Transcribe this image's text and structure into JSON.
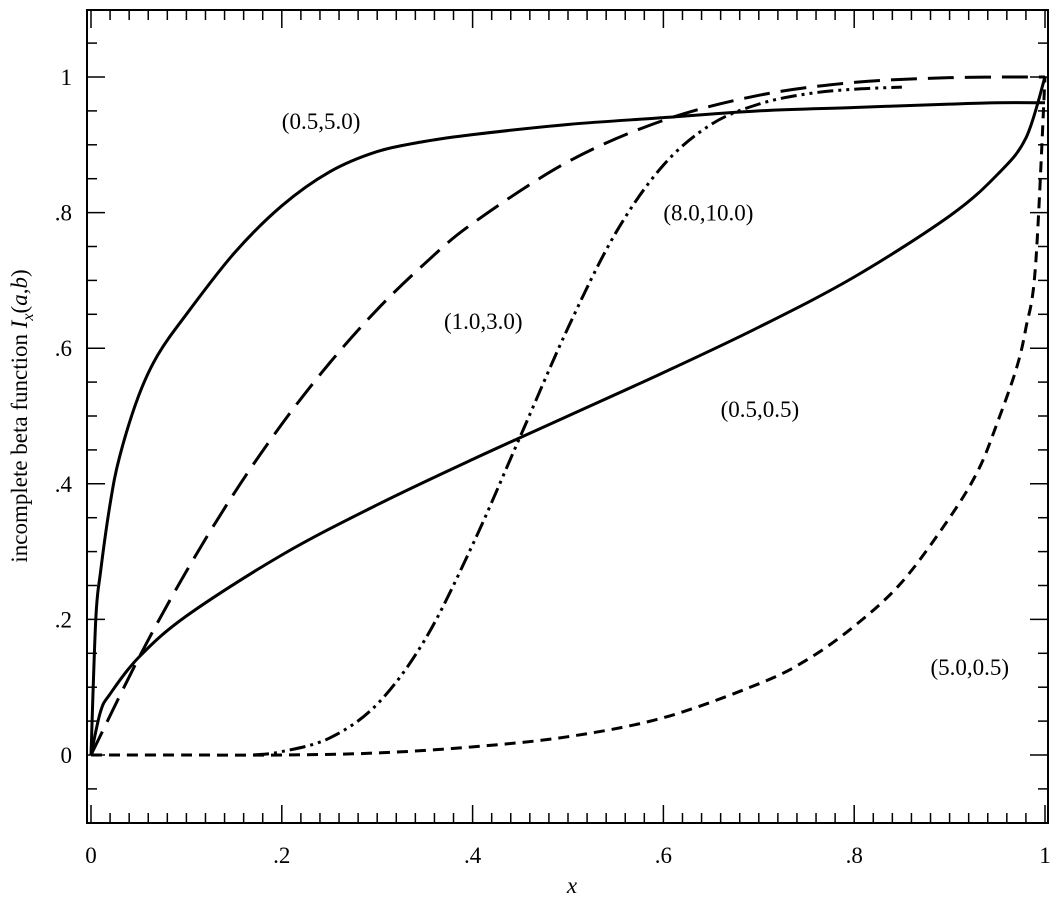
{
  "chart_data": {
    "type": "line",
    "title": "",
    "xlabel": "x",
    "ylabel": {
      "prefix": "incomplete beta function ",
      "I": "I",
      "sub": "x",
      "open": "(",
      "a": "a",
      "comma": ",",
      "b": "b",
      "close": ")"
    },
    "xlim": [
      0,
      1
    ],
    "ylim": [
      -0.1,
      1.05
    ],
    "x_ticks": [
      {
        "value": 0,
        "label": "0"
      },
      {
        "value": 0.2,
        "label": ".2"
      },
      {
        "value": 0.4,
        "label": ".4"
      },
      {
        "value": 0.6,
        "label": ".6"
      },
      {
        "value": 0.8,
        "label": ".8"
      },
      {
        "value": 1,
        "label": "1"
      }
    ],
    "y_ticks": [
      {
        "value": 0,
        "label": "0"
      },
      {
        "value": 0.2,
        "label": ".2"
      },
      {
        "value": 0.4,
        "label": ".4"
      },
      {
        "value": 0.6,
        "label": ".6"
      },
      {
        "value": 0.8,
        "label": ".8"
      },
      {
        "value": 1,
        "label": "1"
      }
    ],
    "grid": false,
    "series": [
      {
        "name": "(0.5,5.0)",
        "style": "solid",
        "label_at": [
          0.2,
          0.935
        ],
        "x": [
          0,
          0.005,
          0.01,
          0.02,
          0.03,
          0.05,
          0.07,
          0.1,
          0.15,
          0.2,
          0.25,
          0.3,
          0.35,
          0.4,
          0.5,
          0.6,
          0.7,
          0.8,
          0.9,
          0.95,
          1.0
        ],
        "y": [
          0,
          0.2,
          0.27,
          0.37,
          0.44,
          0.53,
          0.59,
          0.65,
          0.74,
          0.81,
          0.86,
          0.89,
          0.905,
          0.915,
          0.93,
          0.94,
          0.95,
          0.955,
          0.96,
          0.962,
          0.962
        ]
      },
      {
        "name": "(1.0,3.0)",
        "style": "long-dash",
        "label_at": [
          0.37,
          0.64
        ],
        "x": [
          0,
          0.05,
          0.1,
          0.15,
          0.2,
          0.25,
          0.3,
          0.35,
          0.4,
          0.5,
          0.6,
          0.7,
          0.8,
          0.9,
          1.0
        ],
        "y": [
          0,
          0.143,
          0.271,
          0.386,
          0.488,
          0.578,
          0.657,
          0.725,
          0.784,
          0.875,
          0.936,
          0.973,
          0.992,
          0.999,
          1.0
        ]
      },
      {
        "name": "(8.0,10.0)",
        "style": "dash-dot-dot",
        "label_at": [
          0.6,
          0.8
        ],
        "x": [
          0.17,
          0.2,
          0.25,
          0.3,
          0.35,
          0.4,
          0.45,
          0.5,
          0.55,
          0.6,
          0.65,
          0.7,
          0.75,
          0.8,
          0.85
        ],
        "y": [
          0,
          0.005,
          0.025,
          0.075,
          0.17,
          0.31,
          0.47,
          0.63,
          0.77,
          0.87,
          0.93,
          0.96,
          0.975,
          0.982,
          0.985
        ]
      },
      {
        "name": "(0.5,0.5)",
        "style": "solid",
        "label_at": [
          0.66,
          0.51
        ],
        "x": [
          0,
          0.01,
          0.02,
          0.05,
          0.1,
          0.2,
          0.3,
          0.4,
          0.5,
          0.6,
          0.7,
          0.8,
          0.9,
          0.95,
          0.98,
          1.0
        ],
        "y": [
          0,
          0.064,
          0.09,
          0.144,
          0.205,
          0.295,
          0.369,
          0.436,
          0.5,
          0.564,
          0.631,
          0.705,
          0.795,
          0.856,
          0.91,
          1.0
        ]
      },
      {
        "name": "(5.0,0.5)",
        "style": "short-dash",
        "label_at": [
          0.88,
          0.13
        ],
        "x": [
          0,
          0.1,
          0.2,
          0.3,
          0.4,
          0.5,
          0.6,
          0.7,
          0.75,
          0.8,
          0.85,
          0.9,
          0.93,
          0.95,
          0.97,
          0.98,
          0.99,
          1.0
        ],
        "y": [
          0,
          0.0,
          0.0,
          0.003,
          0.012,
          0.027,
          0.055,
          0.105,
          0.14,
          0.19,
          0.255,
          0.35,
          0.42,
          0.49,
          0.57,
          0.63,
          0.72,
          1.0
        ]
      }
    ]
  }
}
